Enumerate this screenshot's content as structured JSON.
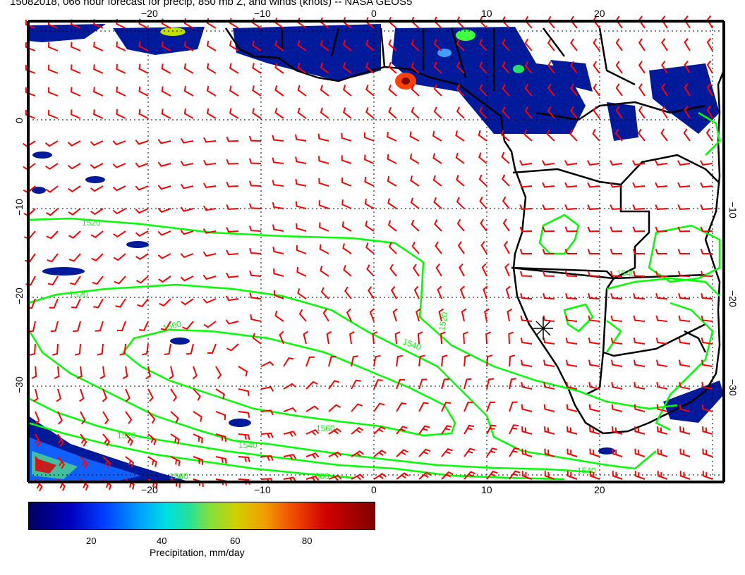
{
  "title": "15082018, 066 hour forecast for precip, 850 mb Z, and winds (knots) -- NASA GEOS5",
  "map": {
    "lon_ticks_top": [
      "−20",
      "−10",
      "0",
      "10",
      "20"
    ],
    "lon_ticks_bottom": [
      "−20",
      "−10",
      "0",
      "10",
      "20"
    ],
    "lat_ticks_left": [
      "0",
      "−10",
      "−20",
      "−30"
    ],
    "lat_ticks_right": [
      "−10",
      "−20",
      "−30"
    ],
    "lon_range": [
      -30,
      30
    ],
    "lat_range": [
      -40,
      10
    ],
    "wind_barb_color": "#ff0000",
    "contour_color": "#00ff00",
    "coast_color": "#000000",
    "contour_labels": [
      "1520",
      "1520",
      "1540",
      "1560",
      "1560",
      "1540",
      "1520",
      "1560",
      "1520",
      "1540",
      "1560",
      "1540"
    ],
    "marker": "star-marker"
  },
  "colorbar": {
    "ticks": [
      "20",
      "40",
      "60",
      "80"
    ],
    "label": "Precipitation, mm/day"
  }
}
